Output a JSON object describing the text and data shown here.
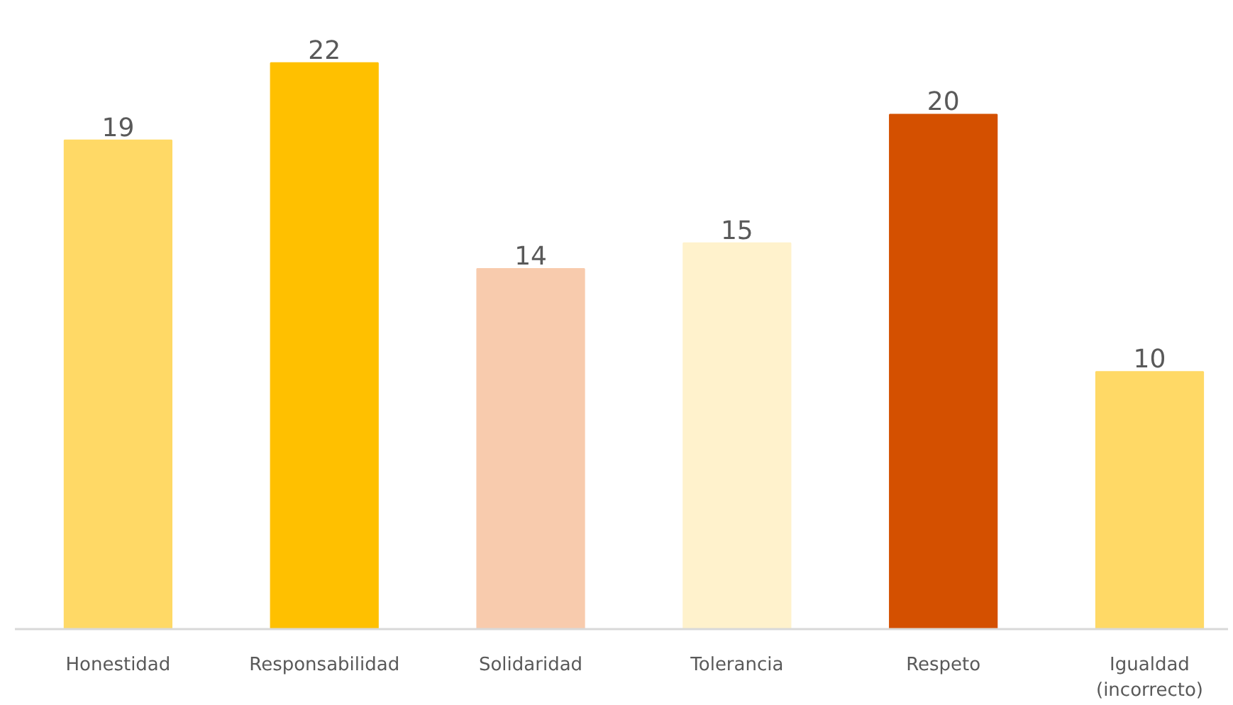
{
  "chart_data": {
    "type": "bar",
    "categories": [
      "Honestidad",
      "Responsabilidad",
      "Solidaridad",
      "Tolerancia",
      "Respeto",
      "Igualdad (incorrecto)"
    ],
    "values": [
      19,
      22,
      14,
      15,
      20,
      10
    ],
    "colors": [
      "#ffd966",
      "#ffc000",
      "#f8cbad",
      "#fff2cc",
      "#d45000",
      "#ffd966"
    ],
    "data_labels": true,
    "tick_labels": "x",
    "grid": false
  }
}
